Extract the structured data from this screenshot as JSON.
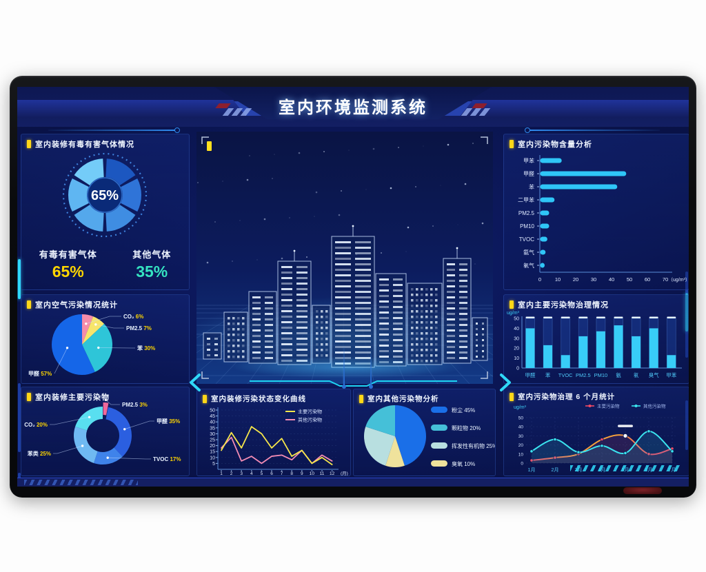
{
  "header": {
    "title": "室内环境监测系统"
  },
  "panels": {
    "toxic_gas": {
      "title": "室内装修有毒有害气体情况"
    },
    "air_stat": {
      "title": "室内空气污染情况统计"
    },
    "main_pollutant": {
      "title": "室内装修主要污染物"
    },
    "content": {
      "title": "室内污染物含量分析"
    },
    "treatment": {
      "title": "室内主要污染物治理情况"
    },
    "curve": {
      "title": "室内装修污染状态变化曲线"
    },
    "other": {
      "title": "室内其他污染物分析"
    },
    "month6": {
      "title": "室内污染物治理 6 个月统计"
    }
  },
  "chart_data": [
    {
      "id": "toxic_gauge",
      "type": "donut",
      "title": "室内装修有毒有害气体情况",
      "center_value": "65%",
      "segment_colors": [
        "#1c57c0",
        "#2f74d8",
        "#3f8de2",
        "#54a8ec",
        "#5fb6f2",
        "#74ccf8"
      ],
      "series": [
        {
          "name": "有毒有害气体",
          "value": 65,
          "display": "65%",
          "color": "#ffd600"
        },
        {
          "name": "其他气体",
          "value": 35,
          "display": "35%",
          "color": "#35e3c1"
        }
      ]
    },
    {
      "id": "air_pie",
      "type": "pie",
      "title": "室内空气污染情况统计",
      "slices": [
        {
          "label": "CO₂",
          "pct": 6,
          "color": "#f48caa"
        },
        {
          "label": "PM2.5",
          "pct": 7,
          "color": "#f7e56b"
        },
        {
          "label": "苯",
          "pct": 30,
          "color": "#2ec5d8"
        },
        {
          "label": "甲醛",
          "pct": 57,
          "color": "#1566e8"
        }
      ]
    },
    {
      "id": "main_donut",
      "type": "donut",
      "title": "室内装修主要污染物",
      "slices": [
        {
          "label": "PM2.5",
          "pct": 3,
          "color": "#f0689a"
        },
        {
          "label": "甲醛",
          "pct": 35,
          "color": "#2b5fe0"
        },
        {
          "label": "TVOC",
          "pct": 17,
          "color": "#3f83ea"
        },
        {
          "label": "苯类",
          "pct": 25,
          "color": "#6fb9f2"
        },
        {
          "label": "CO₂",
          "pct": 20,
          "color": "#59dff0"
        }
      ]
    },
    {
      "id": "content_hbar",
      "type": "bar",
      "orientation": "horizontal",
      "title": "室内污染物含量分析",
      "categories": [
        "甲苯",
        "甲醛",
        "苯",
        "二甲苯",
        "PM2.5",
        "PM10",
        "TVOC",
        "氨气",
        "氡气"
      ],
      "values": [
        12,
        48,
        43,
        8,
        5,
        5,
        4,
        3,
        2.5
      ],
      "xlim": [
        0,
        70
      ],
      "xticks": [
        0,
        10,
        20,
        30,
        40,
        50,
        60,
        70
      ],
      "unit": "（ug/m³）",
      "bar_color": "#2fc6f7"
    },
    {
      "id": "treatment_vbar",
      "type": "bar",
      "title": "室内主要污染物治理情况",
      "ylabel": "ug/m³",
      "ylim": [
        0,
        50
      ],
      "yticks": [
        0,
        10,
        20,
        30,
        40,
        50
      ],
      "categories": [
        "甲醛",
        "苯",
        "TVOC",
        "PM2.5",
        "PM10",
        "氨",
        "氡",
        "臭气",
        "甲苯"
      ],
      "values": [
        40,
        23,
        13,
        32,
        37,
        43,
        32,
        40,
        13
      ],
      "bar_color": "#38cdf8"
    },
    {
      "id": "curve_line",
      "type": "line",
      "title": "室内装修污染状态变化曲线",
      "x_labels": [
        "1",
        "2",
        "3",
        "4",
        "5",
        "6",
        "7",
        "8",
        "9",
        "10",
        "11",
        "12"
      ],
      "x_unit": "(月)",
      "ylim": [
        0,
        50
      ],
      "yticks": [
        5,
        10,
        15,
        20,
        25,
        30,
        35,
        40,
        45,
        50
      ],
      "series": [
        {
          "name": "主要污染物",
          "color": "#f7e74a",
          "values": [
            16,
            31,
            18,
            36,
            30,
            18,
            26,
            11,
            16,
            5,
            10,
            4
          ]
        },
        {
          "name": "其他污染物",
          "color": "#f48cb4",
          "values": [
            18,
            27,
            7,
            11,
            5,
            11,
            12,
            8,
            16,
            5,
            12,
            7
          ]
        }
      ]
    },
    {
      "id": "other_pie",
      "type": "pie",
      "title": "室内其他污染物分析",
      "slices": [
        {
          "label": "粉尘",
          "pct": 45,
          "color": "#1a6fe8"
        },
        {
          "label": "颗粒物",
          "pct": 20,
          "color": "#45c0d8"
        },
        {
          "label": "挥发性有机物",
          "pct": 25,
          "color": "#b8dfe0"
        },
        {
          "label": "臭氧",
          "pct": 10,
          "color": "#efe29c"
        }
      ],
      "pie_order": [
        0,
        3,
        2,
        1
      ]
    },
    {
      "id": "month6_line",
      "type": "line",
      "smooth": true,
      "title": "室内污染物治理 6 个月统计",
      "ylabel": "ug/m³",
      "ylim": [
        0,
        50
      ],
      "yticks": [
        0,
        10,
        20,
        30,
        40,
        50
      ],
      "categories": [
        "1月",
        "2月",
        "3月",
        "4月",
        "5月",
        "6月",
        "7月"
      ],
      "series": [
        {
          "name": "主要污染物",
          "color": "#f04a66",
          "gradient": [
            "#f04a66",
            "#f5a03a",
            "#f04a66"
          ],
          "values": [
            3,
            6,
            10,
            26,
            30,
            10,
            16
          ]
        },
        {
          "name": "其他污染物",
          "color": "#3be4ef",
          "values": [
            13,
            26,
            12,
            19,
            11,
            35,
            13
          ]
        }
      ],
      "highlight": {
        "series": 0,
        "index": 4
      }
    }
  ]
}
